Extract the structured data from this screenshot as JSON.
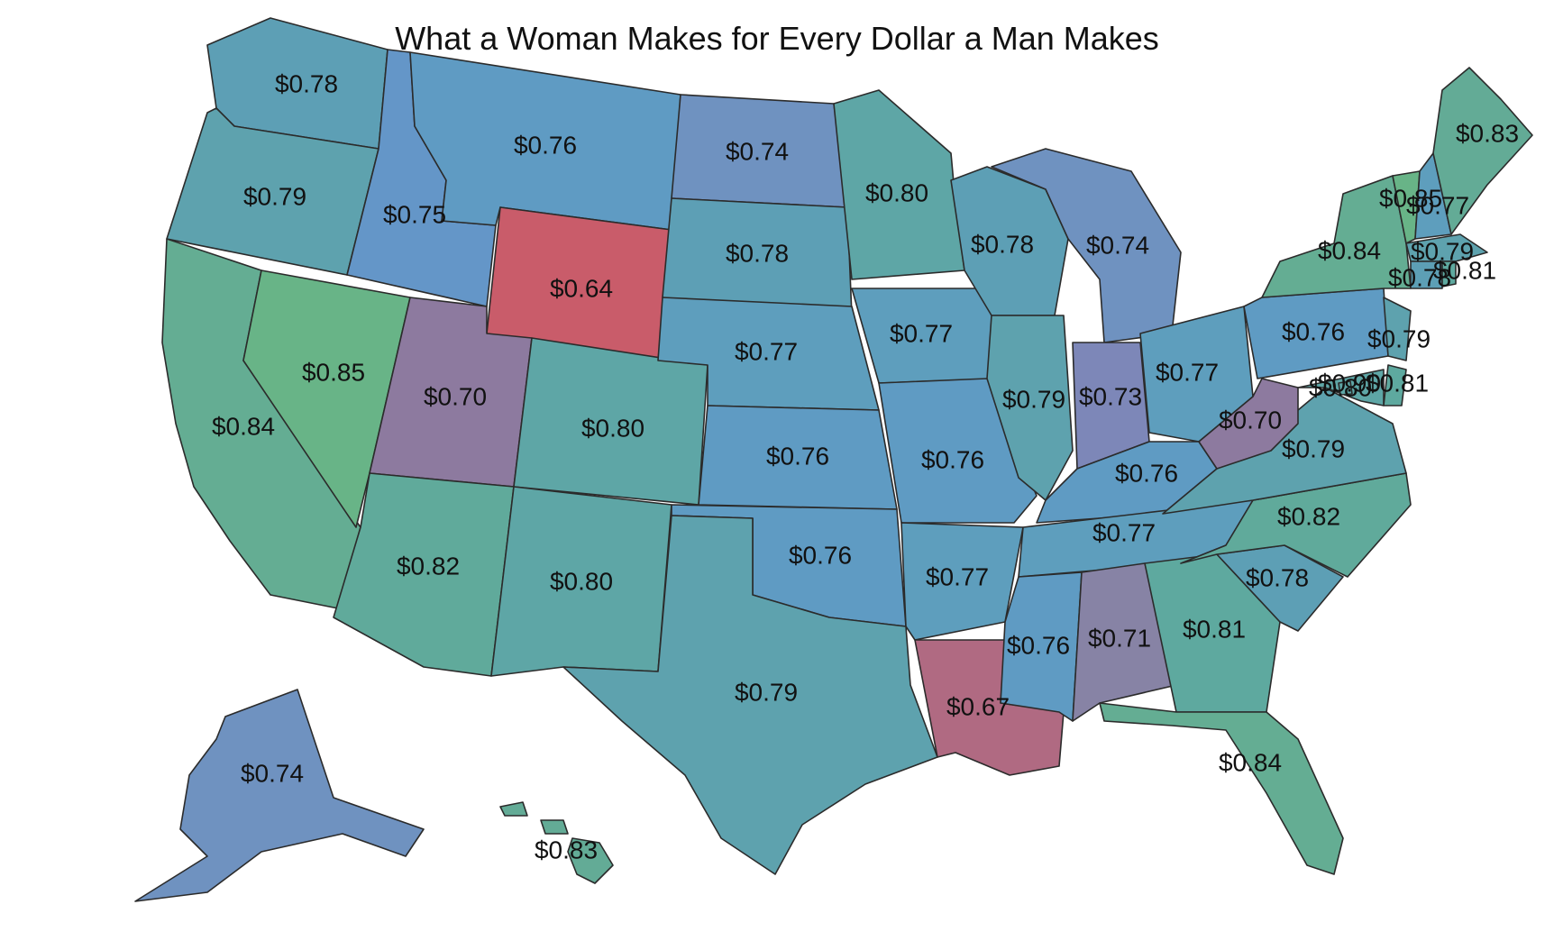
{
  "map": {
    "title": "What a Woman Makes for Every Dollar a Man Makes",
    "colors": {
      "0.64": "#c95c6a",
      "0.67": "#b06a82",
      "0.70": "#8d7a9f",
      "0.71": "#8783a5",
      "0.73": "#7d87b8",
      "0.74": "#6f92c0",
      "0.75": "#6496c8",
      "0.76": "#5f9bc3",
      "0.77": "#5e9ebd",
      "0.78": "#5d9fb5",
      "0.79": "#5ea2ae",
      "0.80": "#5ea6a6",
      "0.81": "#5ea99f",
      "0.82": "#60aa9b",
      "0.83": "#63ab96",
      "0.84": "#64ad93",
      "0.85": "#68b487"
    },
    "states": [
      {
        "id": "WA",
        "value": 0.78,
        "label": "$0.78"
      },
      {
        "id": "OR",
        "value": 0.79,
        "label": "$0.79"
      },
      {
        "id": "CA",
        "value": 0.84,
        "label": "$0.84"
      },
      {
        "id": "NV",
        "value": 0.85,
        "label": "$0.85"
      },
      {
        "id": "ID",
        "value": 0.75,
        "label": "$0.75"
      },
      {
        "id": "MT",
        "value": 0.76,
        "label": "$0.76"
      },
      {
        "id": "WY",
        "value": 0.64,
        "label": "$0.64"
      },
      {
        "id": "UT",
        "value": 0.7,
        "label": "$0.70"
      },
      {
        "id": "AZ",
        "value": 0.82,
        "label": "$0.82"
      },
      {
        "id": "CO",
        "value": 0.8,
        "label": "$0.80"
      },
      {
        "id": "NM",
        "value": 0.8,
        "label": "$0.80"
      },
      {
        "id": "ND",
        "value": 0.74,
        "label": "$0.74"
      },
      {
        "id": "SD",
        "value": 0.78,
        "label": "$0.78"
      },
      {
        "id": "NE",
        "value": 0.77,
        "label": "$0.77"
      },
      {
        "id": "KS",
        "value": 0.76,
        "label": "$0.76"
      },
      {
        "id": "OK",
        "value": 0.76,
        "label": "$0.76"
      },
      {
        "id": "TX",
        "value": 0.79,
        "label": "$0.79"
      },
      {
        "id": "MN",
        "value": 0.8,
        "label": "$0.80"
      },
      {
        "id": "IA",
        "value": 0.77,
        "label": "$0.77"
      },
      {
        "id": "MO",
        "value": 0.76,
        "label": "$0.76"
      },
      {
        "id": "AR",
        "value": 0.77,
        "label": "$0.77"
      },
      {
        "id": "LA",
        "value": 0.67,
        "label": "$0.67"
      },
      {
        "id": "WI",
        "value": 0.78,
        "label": "$0.78"
      },
      {
        "id": "IL",
        "value": 0.79,
        "label": "$0.79"
      },
      {
        "id": "MI",
        "value": 0.74,
        "label": "$0.74"
      },
      {
        "id": "IN",
        "value": 0.73,
        "label": "$0.73"
      },
      {
        "id": "OH",
        "value": 0.77,
        "label": "$0.77"
      },
      {
        "id": "KY",
        "value": 0.76,
        "label": "$0.76"
      },
      {
        "id": "TN",
        "value": 0.77,
        "label": "$0.77"
      },
      {
        "id": "MS",
        "value": 0.76,
        "label": "$0.76"
      },
      {
        "id": "AL",
        "value": 0.71,
        "label": "$0.71"
      },
      {
        "id": "GA",
        "value": 0.81,
        "label": "$0.81"
      },
      {
        "id": "FL",
        "value": 0.84,
        "label": "$0.84"
      },
      {
        "id": "SC",
        "value": 0.78,
        "label": "$0.78"
      },
      {
        "id": "NC",
        "value": 0.82,
        "label": "$0.82"
      },
      {
        "id": "VA",
        "value": 0.79,
        "label": "$0.79"
      },
      {
        "id": "WV",
        "value": 0.7,
        "label": "$0.70"
      },
      {
        "id": "PA",
        "value": 0.76,
        "label": "$0.76"
      },
      {
        "id": "NY",
        "value": 0.84,
        "label": "$0.84"
      },
      {
        "id": "NJ",
        "value": 0.79,
        "label": "$0.79"
      },
      {
        "id": "DE",
        "value": 0.81,
        "label": "$0.81"
      },
      {
        "id": "MD",
        "value": 0.8,
        "label": "$0.80"
      },
      {
        "id": "DC",
        "value": 0.9,
        "label": "$0.90"
      },
      {
        "id": "VT",
        "value": 0.85,
        "label": "$0.85"
      },
      {
        "id": "NH",
        "value": 0.77,
        "label": "$0.77"
      },
      {
        "id": "ME",
        "value": 0.83,
        "label": "$0.83"
      },
      {
        "id": "MA",
        "value": 0.79,
        "label": "$0.79"
      },
      {
        "id": "CT",
        "value": 0.78,
        "label": "$0.78"
      },
      {
        "id": "RI",
        "value": 0.81,
        "label": "$0.81"
      },
      {
        "id": "AK",
        "value": 0.74,
        "label": "$0.74"
      },
      {
        "id": "HI",
        "value": 0.83,
        "label": "$0.83"
      }
    ]
  }
}
